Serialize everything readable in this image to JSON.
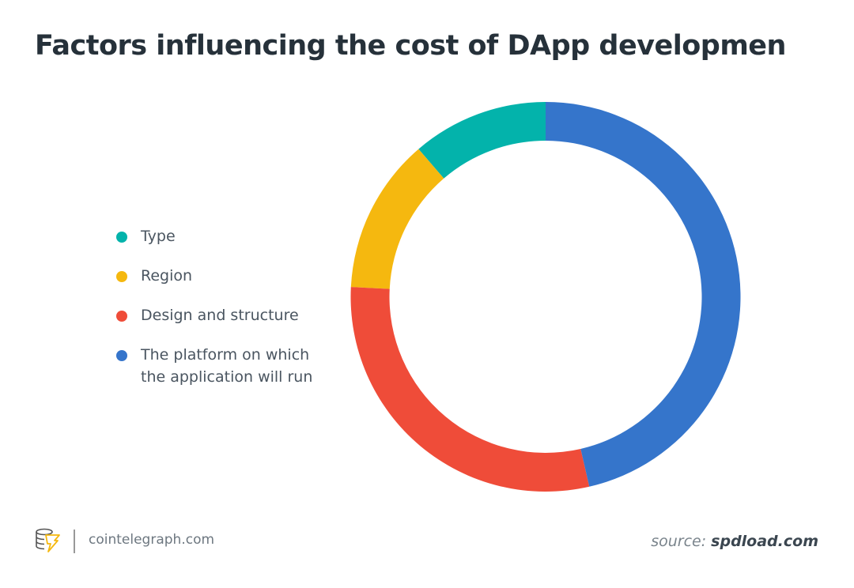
{
  "title": "Factors influencing the cost of DApp developmen",
  "chart_data": {
    "type": "pie",
    "donut": true,
    "categories": [
      "Type",
      "Region",
      "Design and structure",
      "The platform on which the application will run"
    ],
    "values": [
      11.3,
      12.9,
      29.4,
      46.4
    ],
    "colors": [
      "#03b3ab",
      "#f5b80f",
      "#ef4c39",
      "#3575cb"
    ],
    "legend_position": "left"
  },
  "legend": [
    {
      "line1": "Type",
      "line2": ""
    },
    {
      "line1": "Region",
      "line2": ""
    },
    {
      "line1": "Design and structure",
      "line2": ""
    },
    {
      "line1": "The platform on which",
      "line2": "the application will run"
    }
  ],
  "footer": {
    "site": "cointelegraph.com",
    "source_prefix": "source:",
    "source_name": "spdload.com"
  }
}
